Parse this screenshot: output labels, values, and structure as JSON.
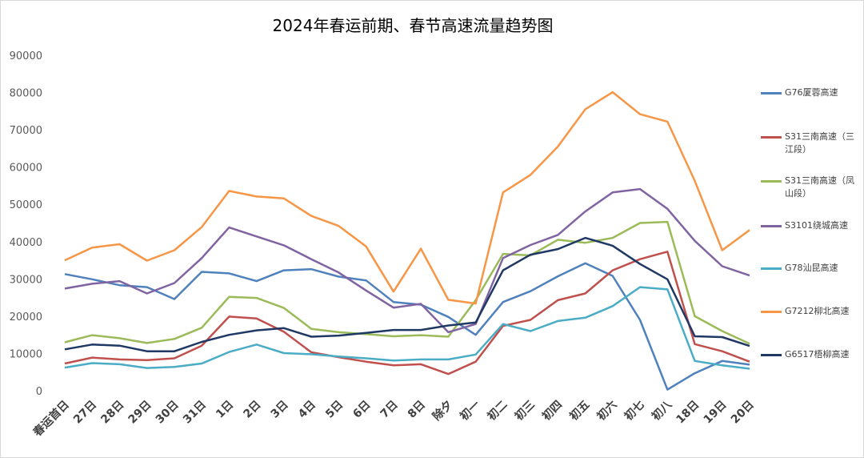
{
  "chart_data": {
    "type": "line",
    "title": "2024年春运前期、春节高速流量趋势图",
    "categories": [
      "春运首日",
      "27日",
      "28日",
      "29日",
      "30日",
      "31日",
      "1日",
      "2日",
      "3日",
      "4日",
      "5日",
      "6日",
      "7日",
      "8日",
      "除夕",
      "初一",
      "初二",
      "初三",
      "初四",
      "初五",
      "初六",
      "初七",
      "初八",
      "18日",
      "19日",
      "20日"
    ],
    "ylim": [
      0,
      90000
    ],
    "yticks": [
      0,
      10000,
      20000,
      30000,
      40000,
      50000,
      60000,
      70000,
      80000,
      90000
    ],
    "grid": false,
    "series": [
      {
        "name": "G76厦蓉高速",
        "color": "#4f81bd",
        "values": [
          31300,
          29900,
          28300,
          27800,
          24600,
          31900,
          31500,
          29400,
          32300,
          32600,
          30600,
          29600,
          23800,
          23100,
          19800,
          15000,
          23800,
          26700,
          30700,
          34200,
          30800,
          19000,
          300,
          4700,
          8000,
          7000
        ]
      },
      {
        "name": "S31三南高速（三江段）",
        "color": "#c0504d",
        "values": [
          7300,
          8900,
          8400,
          8200,
          8700,
          12100,
          19900,
          19400,
          15800,
          10300,
          9000,
          7800,
          6800,
          7100,
          4500,
          7800,
          17400,
          19000,
          24300,
          26100,
          32300,
          35300,
          37300,
          12500,
          10600,
          7800
        ]
      },
      {
        "name": "S31三南高速（凤山段）",
        "color": "#9bbb59",
        "values": [
          13000,
          14900,
          14100,
          12800,
          13900,
          16900,
          25200,
          24900,
          22200,
          16600,
          15700,
          15200,
          14600,
          14900,
          14500,
          24300,
          36700,
          36300,
          40500,
          39700,
          41000,
          45000,
          45300,
          20000,
          16000,
          12600
        ]
      },
      {
        "name": "S3101绕城高速",
        "color": "#8064a2",
        "values": [
          27400,
          28700,
          29400,
          26100,
          28900,
          35600,
          43800,
          41400,
          39000,
          35300,
          31700,
          26900,
          22300,
          23300,
          15700,
          17900,
          35600,
          39100,
          41800,
          48100,
          53200,
          54100,
          48800,
          40200,
          33400,
          30900
        ]
      },
      {
        "name": "G78汕昆高速",
        "color": "#4bacc6",
        "values": [
          6200,
          7400,
          7100,
          6100,
          6400,
          7300,
          10400,
          12400,
          10100,
          9800,
          9200,
          8700,
          8100,
          8400,
          8400,
          9700,
          17900,
          16000,
          18700,
          19600,
          22700,
          27800,
          27200,
          8000,
          6800,
          5900
        ]
      },
      {
        "name": "G7212柳北高速",
        "color": "#f79646",
        "values": [
          35000,
          38400,
          39300,
          34900,
          37700,
          43900,
          53600,
          52100,
          51600,
          46900,
          44200,
          38700,
          26600,
          38100,
          24400,
          23400,
          53200,
          57900,
          65500,
          75500,
          80100,
          74200,
          72200,
          56300,
          37700,
          43100
        ]
      },
      {
        "name": "G6517梧柳高速",
        "color": "#1f3864",
        "values": [
          11100,
          12400,
          12100,
          10600,
          10600,
          13100,
          15000,
          16200,
          16800,
          14500,
          14800,
          15500,
          16300,
          16300,
          17500,
          18300,
          32300,
          36500,
          38000,
          41000,
          38900,
          34000,
          29900,
          14600,
          14400,
          12000
        ]
      }
    ]
  }
}
